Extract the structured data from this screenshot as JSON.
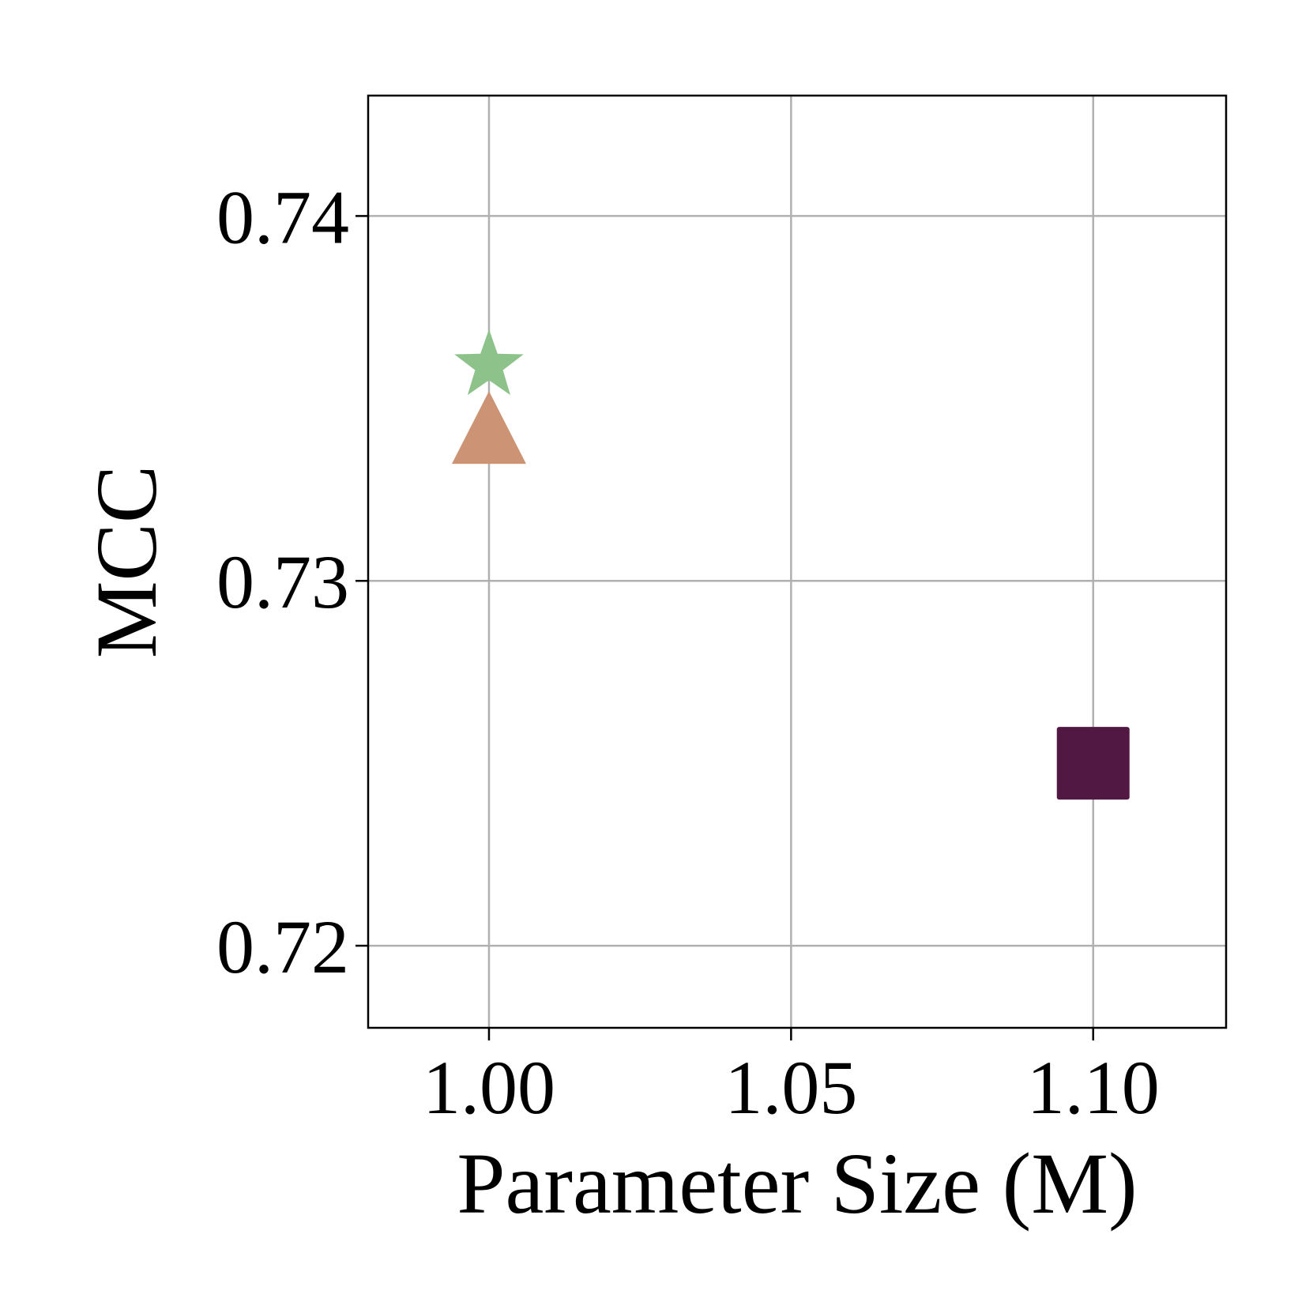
{
  "chart_data": {
    "type": "scatter",
    "title": "",
    "xlabel": "Parameter Size (M)",
    "ylabel": "MCC",
    "xlim": [
      0.98,
      1.122
    ],
    "ylim": [
      0.71775,
      0.7433
    ],
    "xticks": [
      1.0,
      1.05,
      1.1
    ],
    "xtick_labels": [
      "1.00",
      "1.05",
      "1.10"
    ],
    "yticks": [
      0.72,
      0.73,
      0.74
    ],
    "ytick_labels": [
      "0.72",
      "0.73",
      "0.74"
    ],
    "grid": true,
    "points": [
      {
        "x": 1.0,
        "y": 0.7359,
        "marker": "star",
        "color": "#8dc38a"
      },
      {
        "x": 1.0,
        "y": 0.7339,
        "marker": "triangle",
        "color": "#cc9374"
      },
      {
        "x": 1.1,
        "y": 0.725,
        "marker": "square",
        "color": "#521844"
      }
    ]
  }
}
